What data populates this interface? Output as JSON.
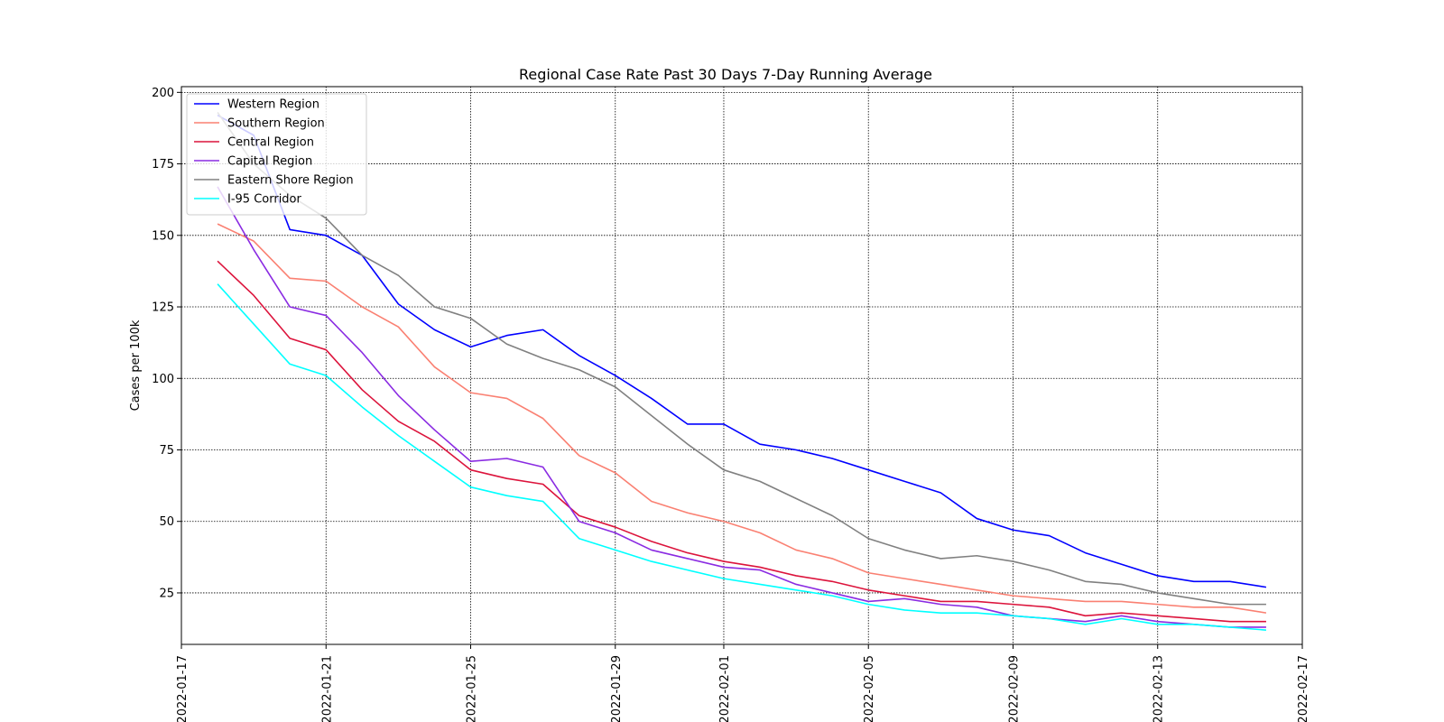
{
  "chart_data": {
    "type": "line",
    "title": "Regional Case Rate  Past 30 Days 7-Day Running Average",
    "xlabel": "",
    "ylabel": "Cases per 100k",
    "xlim": [
      "2022-01-17",
      "2022-02-17"
    ],
    "ylim": [
      7,
      202
    ],
    "x_ticks": [
      "2022-01-17",
      "2022-01-21",
      "2022-01-25",
      "2022-01-29",
      "2022-02-01",
      "2022-02-05",
      "2022-02-09",
      "2022-02-13",
      "2022-02-17"
    ],
    "y_ticks": [
      25,
      50,
      75,
      100,
      125,
      150,
      175,
      200
    ],
    "grid": true,
    "legend_position": "top-left",
    "x": [
      "2022-01-18",
      "2022-01-19",
      "2022-01-20",
      "2022-01-21",
      "2022-01-22",
      "2022-01-23",
      "2022-01-24",
      "2022-01-25",
      "2022-01-26",
      "2022-01-27",
      "2022-01-28",
      "2022-01-29",
      "2022-01-30",
      "2022-01-31",
      "2022-02-01",
      "2022-02-02",
      "2022-02-03",
      "2022-02-04",
      "2022-02-05",
      "2022-02-06",
      "2022-02-07",
      "2022-02-08",
      "2022-02-09",
      "2022-02-10",
      "2022-02-11",
      "2022-02-12",
      "2022-02-13",
      "2022-02-14",
      "2022-02-15",
      "2022-02-16"
    ],
    "series": [
      {
        "name": "Western Region",
        "color": "#0000ff",
        "values": [
          192,
          185,
          152,
          150,
          143,
          126,
          117,
          111,
          115,
          117,
          108,
          101,
          93,
          84,
          84,
          77,
          75,
          72,
          68,
          64,
          60,
          51,
          47,
          45,
          39,
          35,
          31,
          29,
          29,
          27
        ]
      },
      {
        "name": "Southern Region",
        "color": "#fa8072",
        "values": [
          154,
          148,
          135,
          134,
          125,
          118,
          104,
          95,
          93,
          86,
          73,
          67,
          57,
          53,
          50,
          46,
          40,
          37,
          32,
          30,
          28,
          26,
          24,
          23,
          22,
          22,
          21,
          20,
          20,
          18
        ]
      },
      {
        "name": "Central Region",
        "color": "#dc143c",
        "values": [
          141,
          129,
          114,
          110,
          96,
          85,
          78,
          68,
          65,
          63,
          52,
          48,
          43,
          39,
          36,
          34,
          31,
          29,
          26,
          24,
          22,
          22,
          21,
          20,
          17,
          18,
          17,
          16,
          15,
          15
        ]
      },
      {
        "name": "Capital Region",
        "color": "#8a2be2",
        "values": [
          167,
          145,
          125,
          122,
          109,
          94,
          82,
          71,
          72,
          69,
          50,
          46,
          40,
          37,
          34,
          33,
          28,
          25,
          22,
          23,
          21,
          20,
          17,
          16,
          15,
          17,
          15,
          14,
          13,
          13
        ]
      },
      {
        "name": "Eastern Shore Region",
        "color": "#808080",
        "values": [
          193,
          175,
          164,
          156,
          143,
          136,
          125,
          121,
          112,
          107,
          103,
          97,
          87,
          77,
          68,
          64,
          58,
          52,
          44,
          40,
          37,
          38,
          36,
          33,
          29,
          28,
          25,
          23,
          21,
          21
        ]
      },
      {
        "name": "I-95 Corridor",
        "color": "#00ffff",
        "values": [
          133,
          119,
          105,
          101,
          90,
          80,
          71,
          62,
          59,
          57,
          44,
          40,
          36,
          33,
          30,
          28,
          26,
          24,
          21,
          19,
          18,
          18,
          17,
          16,
          14,
          16,
          14,
          14,
          13,
          12
        ]
      }
    ]
  }
}
